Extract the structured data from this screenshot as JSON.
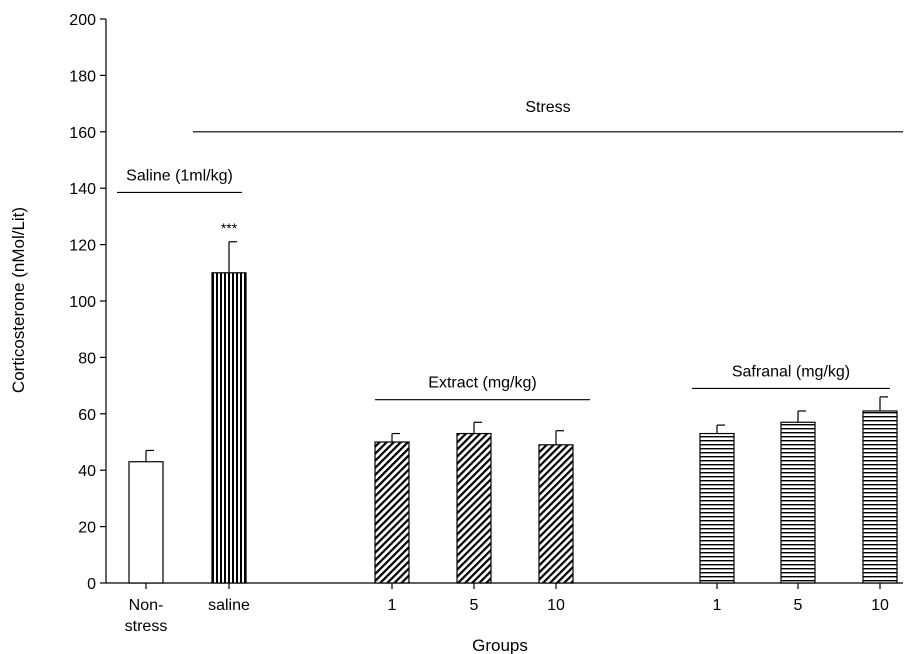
{
  "chart_data": {
    "type": "bar",
    "xlabel": "Groups",
    "ylabel": "Corticosterone (nMol/Lit)",
    "ylim": [
      0,
      200
    ],
    "yticks": [
      0,
      20,
      40,
      60,
      80,
      100,
      120,
      140,
      160,
      180,
      200
    ],
    "grid": false,
    "bars": [
      {
        "label_lines": [
          "Non-",
          "stress"
        ],
        "value": 43,
        "error": 4,
        "pattern": "open",
        "significance": ""
      },
      {
        "label_lines": [
          "saline"
        ],
        "value": 110,
        "error": 11,
        "pattern": "vertical",
        "significance": "***"
      },
      {
        "label_lines": [
          "1"
        ],
        "value": 50,
        "error": 3,
        "pattern": "diagonal",
        "significance": ""
      },
      {
        "label_lines": [
          "5"
        ],
        "value": 53,
        "error": 4,
        "pattern": "diagonal",
        "significance": ""
      },
      {
        "label_lines": [
          "10"
        ],
        "value": 49,
        "error": 5,
        "pattern": "diagonal",
        "significance": ""
      },
      {
        "label_lines": [
          "1"
        ],
        "value": 53,
        "error": 3,
        "pattern": "horizontal",
        "significance": ""
      },
      {
        "label_lines": [
          "5"
        ],
        "value": 57,
        "error": 4,
        "pattern": "horizontal",
        "significance": ""
      },
      {
        "label_lines": [
          "10"
        ],
        "value": 61,
        "error": 5,
        "pattern": "horizontal",
        "significance": ""
      }
    ],
    "group_annotations": [
      {
        "text": "Saline (1ml/kg)",
        "from_bar": 0,
        "to_bar": 1,
        "level": 138.5
      },
      {
        "text": "Stress",
        "from_bar": 1,
        "to_bar": 7,
        "level": 160
      },
      {
        "text": "Extract (mg/kg)",
        "from_bar": 2,
        "to_bar": 4,
        "level": 65
      },
      {
        "text": "Safranal (mg/kg)",
        "from_bar": 5,
        "to_bar": 7,
        "level": 69
      }
    ],
    "colors": {
      "bar_fill": "#ffffff",
      "pattern": "#000000",
      "axis": "#000000"
    }
  }
}
